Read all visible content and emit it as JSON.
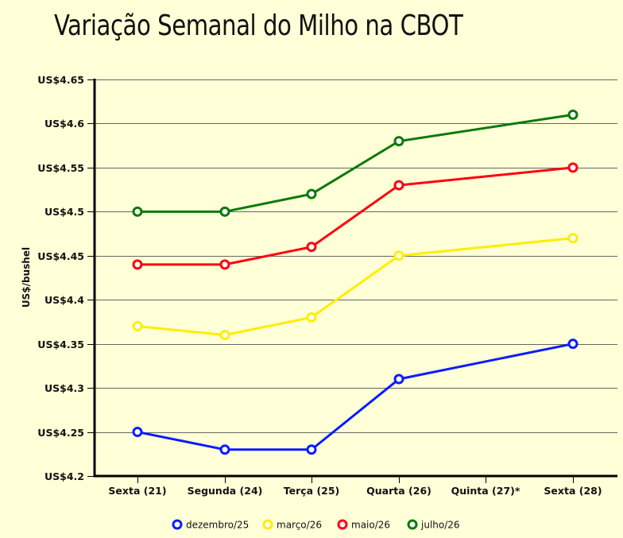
{
  "chart_data": {
    "type": "line",
    "title": "Variação Semanal do Milho na CBOT",
    "xlabel": "",
    "ylabel": "US$/bushel",
    "ylim": [
      4.2,
      4.65
    ],
    "grid": true,
    "legend_position": "bottom",
    "y_ticks": [
      "US$4.2",
      "US$4.25",
      "US$4.3",
      "US$4.35",
      "US$4.4",
      "US$4.45",
      "US$4.5",
      "US$4.55",
      "US$4.6",
      "US$4.65"
    ],
    "categories": [
      "Sexta (21)",
      "Segunda (24)",
      "Terça (25)",
      "Quarta (26)",
      "Quinta (27)*",
      "Sexta (28)"
    ],
    "series": [
      {
        "name": "dezembro/25",
        "color": "#0a1cff",
        "values": [
          4.25,
          4.23,
          4.23,
          4.31,
          null,
          4.35
        ]
      },
      {
        "name": "março/26",
        "color": "#ffee00",
        "values": [
          4.37,
          4.36,
          4.38,
          4.45,
          null,
          4.47
        ]
      },
      {
        "name": "maio/26",
        "color": "#ff0010",
        "values": [
          4.44,
          4.44,
          4.46,
          4.53,
          null,
          4.55
        ]
      },
      {
        "name": "julho/26",
        "color": "#0a7a0a",
        "values": [
          4.5,
          4.5,
          4.52,
          4.58,
          null,
          4.61
        ]
      }
    ]
  },
  "colors": {
    "background": "#ffffd8",
    "grid": "#666666",
    "axis": "#000000"
  }
}
